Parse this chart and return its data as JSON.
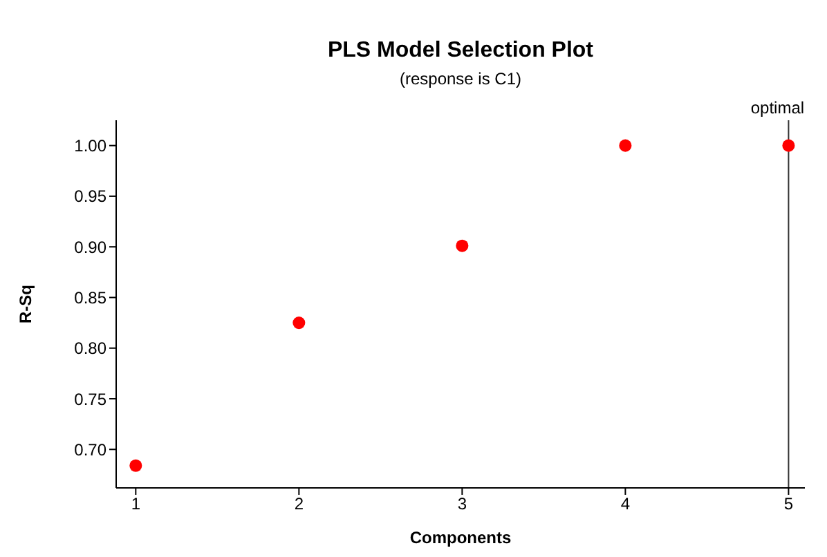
{
  "chart_data": {
    "type": "scatter",
    "title": "PLS Model Selection Plot",
    "subtitle": "(response is C1)",
    "xlabel": "Components",
    "ylabel": "R-Sq",
    "x": [
      1,
      2,
      3,
      4,
      5
    ],
    "series": [
      {
        "color": "#ff0000",
        "values": [
          0.684,
          0.825,
          0.901,
          1.0,
          1.0
        ]
      }
    ],
    "xlim": [
      0.88,
      5.1
    ],
    "xticks": [
      1,
      2,
      3,
      4,
      5
    ],
    "ylim": [
      0.662,
      1.025
    ],
    "yticks": [
      {
        "value": 0.7,
        "label": "0.70"
      },
      {
        "value": 0.75,
        "label": "0.75"
      },
      {
        "value": 0.8,
        "label": "0.80"
      },
      {
        "value": 0.85,
        "label": "0.85"
      },
      {
        "value": 0.9,
        "label": "0.90"
      },
      {
        "value": 0.95,
        "label": "0.95"
      },
      {
        "value": 1.0,
        "label": "1.00"
      }
    ],
    "ref_lines": [
      {
        "axis": "x",
        "value": 5,
        "label": "optimal",
        "color": "#333333"
      }
    ],
    "marker": "circle",
    "grid": false,
    "legend": false
  }
}
